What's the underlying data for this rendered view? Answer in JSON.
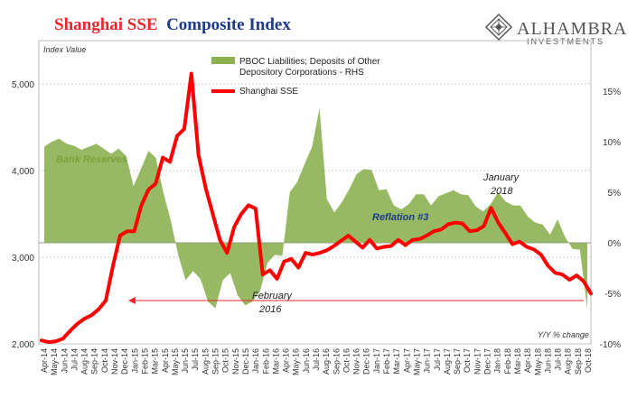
{
  "header": {
    "title_part1": "Shanghai SSE",
    "title_part2": "Composite Index"
  },
  "logo": {
    "name": "ALHAMBRA",
    "sub": "INVESTMENTS",
    "icon": "alhambra-diamond-logo-icon"
  },
  "colors": {
    "sse": "#ff0000",
    "reserves": "#8db152",
    "title_red": "#e8272d",
    "title_blue": "#1e3a8a"
  },
  "chart_data": {
    "type": "line",
    "left_axis_label": "Index Value",
    "right_axis_label": "Y/Y % change",
    "left_ylim": [
      2000,
      5500
    ],
    "right_ylim": [
      -10,
      20
    ],
    "left_ticks": [
      "2,000",
      "3,000",
      "4,000",
      "5,000"
    ],
    "right_ticks": [
      "-10%",
      "-5%",
      "0%",
      "5%",
      "10%",
      "15%"
    ],
    "x_labels": [
      "Apr-14",
      "May-14",
      "Jun-14",
      "Jul-14",
      "Aug-14",
      "Sep-14",
      "Oct-14",
      "Nov-14",
      "Dec-14",
      "Jan-15",
      "Feb-15",
      "Mar-15",
      "Apr-15",
      "May-15",
      "Jun-15",
      "Jul-15",
      "Aug-15",
      "Sep-15",
      "Oct-15",
      "Nov-15",
      "Dec-15",
      "Jan-16",
      "Feb-16",
      "Mar-16",
      "Apr-16",
      "May-16",
      "Jun-16",
      "Jul-16",
      "Aug-16",
      "Sep-16",
      "Oct-16",
      "Nov-16",
      "Dec-16",
      "Jan-17",
      "Feb-17",
      "Mar-17",
      "Apr-17",
      "May-17",
      "Jun-17",
      "Jul-17",
      "Aug-17",
      "Sep-17",
      "Oct-17",
      "Nov-17",
      "Dec-17",
      "Jan-18",
      "Feb-18",
      "Mar-18",
      "Apr-18",
      "May-18",
      "Jun-18",
      "Jul-18",
      "Aug-18",
      "Sep-18",
      "Oct-18"
    ],
    "series": [
      {
        "name": "PBOC Liabilities; Deposits of Other Depository Corporations - RHS",
        "axis": "right",
        "kind": "area",
        "values": [
          9.5,
          10.0,
          10.3,
          9.8,
          9.6,
          9.2,
          9.5,
          9.8,
          9.3,
          8.8,
          9.3,
          8.6,
          5.6,
          7.3,
          9.1,
          8.4,
          5.0,
          2.2,
          -1.2,
          -3.7,
          -2.8,
          -3.6,
          -5.8,
          -6.5,
          -3.7,
          -3.0,
          -5.2,
          -6.2,
          -5.8,
          -4.8,
          -2.0,
          -1.2,
          -1.3,
          5.0,
          6.0,
          7.8,
          9.5,
          13.3,
          4.3,
          3.0,
          4.0,
          5.3,
          6.8,
          7.3,
          7.2,
          5.2,
          5.3,
          3.7,
          3.3,
          3.8,
          4.8,
          4.8,
          3.7,
          4.6,
          4.9,
          5.2,
          4.8,
          4.7,
          3.6,
          3.1,
          3.8,
          5.0,
          4.1,
          3.7,
          3.7,
          2.6,
          2.0,
          1.8,
          0.8,
          2.3,
          0.6,
          -0.6,
          -0.7,
          -6.5
        ]
      },
      {
        "name": "Shanghai SSE",
        "axis": "left",
        "kind": "line",
        "values": [
          2040,
          2020,
          2030,
          2060,
          2150,
          2230,
          2290,
          2330,
          2400,
          2500,
          2900,
          3250,
          3300,
          3300,
          3600,
          3780,
          3850,
          4150,
          4100,
          4400,
          4480,
          5120,
          4180,
          3800,
          3500,
          3200,
          3050,
          3350,
          3500,
          3600,
          3560,
          2800,
          2850,
          2750,
          2950,
          2980,
          2880,
          3050,
          3030,
          3050,
          3080,
          3130,
          3190,
          3250,
          3180,
          3110,
          3200,
          3100,
          3120,
          3130,
          3200,
          3140,
          3200,
          3210,
          3250,
          3300,
          3320,
          3380,
          3400,
          3390,
          3300,
          3310,
          3360,
          3570,
          3400,
          3280,
          3150,
          3180,
          3120,
          3090,
          3030,
          2900,
          2820,
          2800,
          2740,
          2790,
          2720,
          2580
        ]
      }
    ],
    "annotations": [
      {
        "text": "Bank Reserves",
        "kind": "green"
      },
      {
        "text": "Reflation #3",
        "kind": "blue"
      },
      {
        "text": "January",
        "kind": "dark"
      },
      {
        "text": "2018",
        "kind": "dark"
      },
      {
        "text": "February",
        "kind": "dark"
      },
      {
        "text": "2016",
        "kind": "dark"
      }
    ],
    "reference_line": {
      "value": 2500,
      "axis": "left",
      "color": "#e8272d"
    },
    "legend": [
      {
        "label_lines": [
          "PBOC Liabilities; Deposits of Other",
          "Depository Corporations - RHS"
        ],
        "kind": "area"
      },
      {
        "label_lines": [
          "Shanghai SSE"
        ],
        "kind": "line"
      }
    ]
  }
}
